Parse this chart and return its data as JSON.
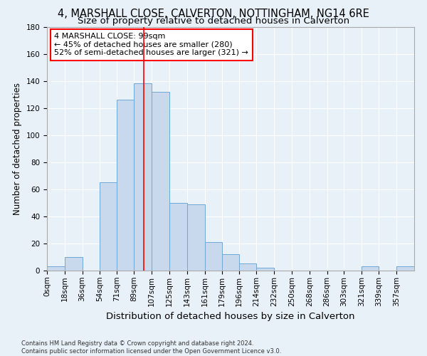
{
  "title": "4, MARSHALL CLOSE, CALVERTON, NOTTINGHAM, NG14 6RE",
  "subtitle": "Size of property relative to detached houses in Calverton",
  "xlabel": "Distribution of detached houses by size in Calverton",
  "ylabel": "Number of detached properties",
  "bin_labels": [
    "0sqm",
    "18sqm",
    "36sqm",
    "54sqm",
    "71sqm",
    "89sqm",
    "107sqm",
    "125sqm",
    "143sqm",
    "161sqm",
    "179sqm",
    "196sqm",
    "214sqm",
    "232sqm",
    "250sqm",
    "268sqm",
    "286sqm",
    "303sqm",
    "321sqm",
    "339sqm",
    "357sqm"
  ],
  "bin_edges": [
    0,
    18,
    36,
    54,
    71,
    89,
    107,
    125,
    143,
    161,
    179,
    196,
    214,
    232,
    250,
    268,
    286,
    303,
    321,
    339,
    357,
    375
  ],
  "bar_heights": [
    3,
    10,
    0,
    65,
    126,
    138,
    132,
    50,
    49,
    21,
    12,
    5,
    2,
    0,
    0,
    0,
    0,
    0,
    3,
    0,
    3
  ],
  "bar_color": "#c9d9ed",
  "bar_edge_color": "#6fa8d6",
  "vline_x": 99,
  "vline_color": "red",
  "annotation_box_text": "4 MARSHALL CLOSE: 99sqm\n← 45% of detached houses are smaller (280)\n52% of semi-detached houses are larger (321) →",
  "annotation_box_color": "red",
  "ylim": [
    0,
    180
  ],
  "yticks": [
    0,
    20,
    40,
    60,
    80,
    100,
    120,
    140,
    160,
    180
  ],
  "background_color": "#e8f0f8",
  "plot_background": "#e8f0f8",
  "grid_color": "white",
  "footer_text": "Contains HM Land Registry data © Crown copyright and database right 2024.\nContains public sector information licensed under the Open Government Licence v3.0.",
  "title_fontsize": 10.5,
  "subtitle_fontsize": 9.5,
  "xlabel_fontsize": 9.5,
  "ylabel_fontsize": 8.5,
  "tick_fontsize": 7.5,
  "annot_fontsize": 8.0,
  "footer_fontsize": 6.0
}
